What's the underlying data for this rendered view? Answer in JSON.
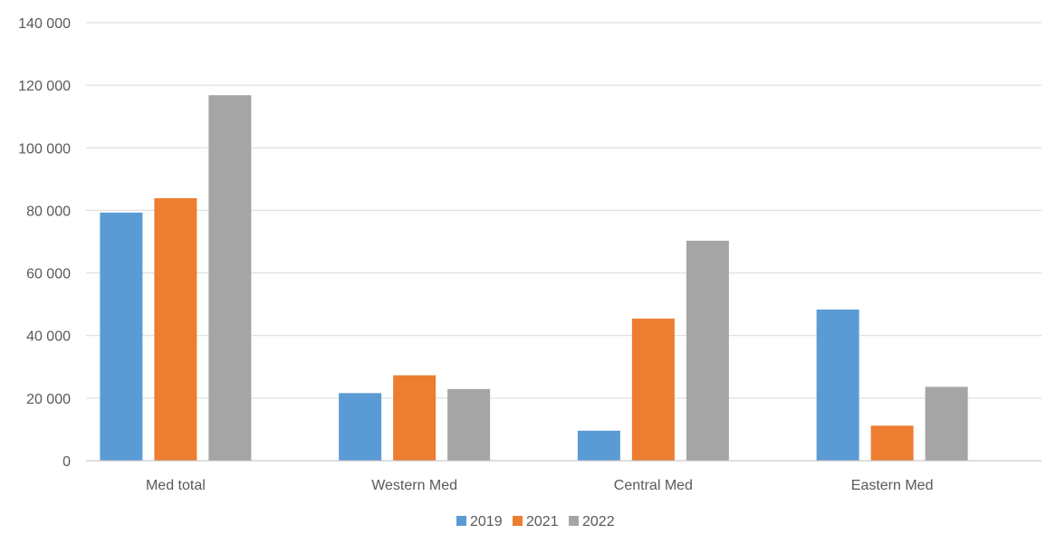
{
  "chart_data": {
    "type": "bar",
    "title": "",
    "xlabel": "",
    "ylabel": "",
    "categories": [
      "Med total",
      "Western Med",
      "Central Med",
      "Eastern Med"
    ],
    "series": [
      {
        "name": "2019",
        "color": "#5b9bd5",
        "values": [
          79300,
          21600,
          9600,
          48300
        ]
      },
      {
        "name": "2021",
        "color": "#ed7d31",
        "values": [
          83900,
          27300,
          45400,
          11200
        ]
      },
      {
        "name": "2022",
        "color": "#a5a5a5",
        "values": [
          116800,
          22900,
          70300,
          23600
        ]
      }
    ],
    "ylim": [
      0,
      140000
    ],
    "y_ticks": [
      0,
      20000,
      40000,
      60000,
      80000,
      100000,
      120000,
      140000
    ],
    "y_tick_labels": [
      "0",
      "20 000",
      "40 000",
      "60 000",
      "80 000",
      "100 000",
      "120 000",
      "140 000"
    ],
    "grid": true,
    "legend_position": "bottom-center"
  }
}
